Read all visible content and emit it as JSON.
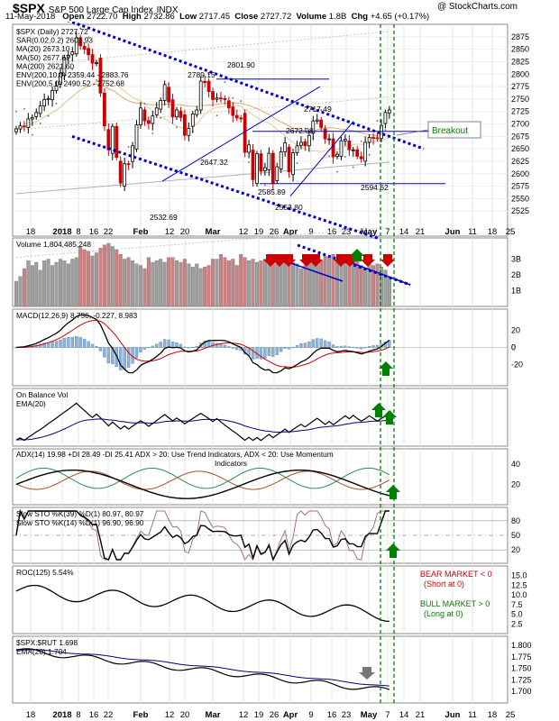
{
  "header": {
    "symbol": "$SPX",
    "name": "S&P 500 Large Cap Index",
    "exchange": "INDX",
    "watermark": "@ StockCharts.com",
    "date": "11-May-2018",
    "open_label": "Open",
    "open": "2722.70",
    "high_label": "High",
    "high": "2732.86",
    "low_label": "Low",
    "low": "2717.45",
    "close_label": "Close",
    "close": "2727.72",
    "volume_label": "Volume",
    "volume": "1.8B",
    "chg_label": "Chg",
    "chg": "+4.65 (+0.17%)"
  },
  "chart_data": {
    "type": "candlestick",
    "timeframe": "Daily",
    "x_axis_labels": [
      "18",
      "2018",
      "8",
      "16",
      "22",
      "Feb",
      "12",
      "20",
      "Mar",
      "12",
      "19",
      "26",
      "Apr",
      "9",
      "16",
      "23",
      "May",
      "7",
      "14",
      "21",
      "Jun",
      "11",
      "18",
      "25"
    ],
    "colors": {
      "up": "#000000",
      "down": "#cc0000",
      "trend_line": "#0000cc",
      "signal_line": "#008000",
      "marker_up": "#008000",
      "marker_down": "#cc0000",
      "marker_neutral": "#777777"
    },
    "price_panel": {
      "legend": [
        "$SPX (Daily) 2727.72",
        "SAR(0.02,0.2) 2601.93",
        "MA(20) 2673.10",
        "MA(50) 2677.67",
        "MA(200) 2621.60",
        "ENV(200,10.0) 2359.44 - 2883.76",
        "ENV(200,5.0) 2490.52 - 2752.68"
      ],
      "ylim": [
        2500,
        2900
      ],
      "y_ticks": [
        2525,
        2550,
        2575,
        2600,
        2625,
        2650,
        2675,
        2700,
        2725,
        2750,
        2775,
        2800,
        2825,
        2850,
        2875
      ],
      "annotations": [
        "2801.90",
        "2789.15",
        "2717.49",
        "2672.08",
        "2647.32",
        "2585.89",
        "2594.62",
        "2553.80",
        "2532.69",
        "Breakout"
      ],
      "closes": [
        2690,
        2696,
        2695,
        2710,
        2713,
        2723,
        2736,
        2749,
        2751,
        2767,
        2776,
        2802,
        2833,
        2838,
        2845,
        2873,
        2857,
        2850,
        2839,
        2822,
        2823,
        2762,
        2696,
        2648,
        2695,
        2633,
        2581,
        2620,
        2619,
        2656,
        2698,
        2732,
        2706,
        2701,
        2716,
        2732,
        2747,
        2779,
        2744,
        2714,
        2728,
        2713,
        2677,
        2691,
        2720,
        2728,
        2786,
        2783,
        2765,
        2749,
        2752,
        2751,
        2749,
        2732,
        2717,
        2712,
        2711,
        2643,
        2658,
        2588,
        2640,
        2605,
        2612,
        2641,
        2581,
        2614,
        2644,
        2662,
        2604,
        2642,
        2656,
        2663,
        2656,
        2677,
        2706,
        2708,
        2693,
        2670,
        2670,
        2634,
        2639,
        2666,
        2669,
        2648,
        2648,
        2635,
        2630,
        2663,
        2673,
        2672,
        2671,
        2697,
        2723,
        2728
      ]
    },
    "volume_panel": {
      "legend": "Volume 1,804,485,248",
      "ylim": [
        0,
        4
      ],
      "y_ticks": [
        "1B",
        "2B",
        "3B"
      ],
      "values": [
        1.6,
        1.9,
        2.4,
        2.9,
        2.6,
        2.8,
        2.3,
        2.9,
        3.0,
        2.6,
        2.8,
        3.0,
        2.9,
        2.7,
        3.0,
        3.1,
        3.8,
        3.6,
        3.5,
        3.2,
        3.4,
        3.7,
        3.9,
        4.0,
        3.8,
        3.6,
        3.3,
        3.0,
        3.1,
        2.9,
        2.7,
        2.6,
        2.4,
        3.1,
        2.8,
        2.9,
        3.0,
        2.8,
        3.1,
        3.1,
        2.9,
        2.8,
        3.0,
        2.7,
        2.5,
        2.7,
        2.4,
        2.5,
        2.6,
        3.0,
        3.0,
        3.3,
        3.1,
        2.9,
        3.0,
        2.6,
        3.3,
        3.1,
        2.9,
        3.0,
        2.8,
        2.9,
        3.0,
        3.0,
        3.2,
        2.7,
        2.8,
        2.9,
        3.2,
        2.8,
        2.7,
        2.4,
        2.6,
        2.8,
        3.0,
        2.7,
        2.9,
        3.2,
        3.1,
        3.3,
        2.8,
        3.0,
        2.9,
        2.8,
        3.2,
        3.0,
        2.6,
        2.4,
        2.9,
        2.6,
        2.7,
        2.5,
        2.3,
        1.8
      ]
    },
    "macd_panel": {
      "legend": "MACD(12,26,9) 8.756, -0.227, 8.983",
      "ylim": [
        -45,
        45
      ],
      "y_ticks": [
        -20,
        0,
        20
      ]
    },
    "obv_panel": {
      "legend": [
        "On Balance Vol",
        "EMA(20)"
      ]
    },
    "adx_panel": {
      "legend": [
        "ADX(14) 19.98 +DI 28.49 -DI 25.41 ADX > 20: Use Trend Indicators, ADX < 20: Use Momentum",
        "Indicators"
      ],
      "ylim": [
        0,
        55
      ],
      "y_ticks": [
        20,
        40
      ]
    },
    "sto_panel": {
      "legend": [
        "Slow STO %K(39) %D(1) 80.97, 80.97",
        "Slow STO %K(14) %D(1) 96.90, 96.90"
      ],
      "ylim": [
        0,
        100
      ],
      "y_ticks": [
        20,
        50,
        80
      ]
    },
    "roc_panel": {
      "legend": "ROC(125) 5.54%",
      "ylim": [
        0,
        17.5
      ],
      "y_ticks": [
        "2.5",
        "5.0",
        "7.5",
        "10.0",
        "12.5",
        "15.0"
      ],
      "notes": [
        "BEAR MARKET < 0",
        "(Short at 0)",
        "BULL MARKET > 0",
        "(Long at 0)"
      ]
    },
    "ratio_panel": {
      "legend": [
        "$SPX:$RUT 1.698",
        "EMA(20) 1.704"
      ],
      "ylim": [
        1.675,
        1.82
      ],
      "y_ticks": [
        "1.700",
        "1.725",
        "1.750",
        "1.775",
        "1.800"
      ]
    }
  }
}
